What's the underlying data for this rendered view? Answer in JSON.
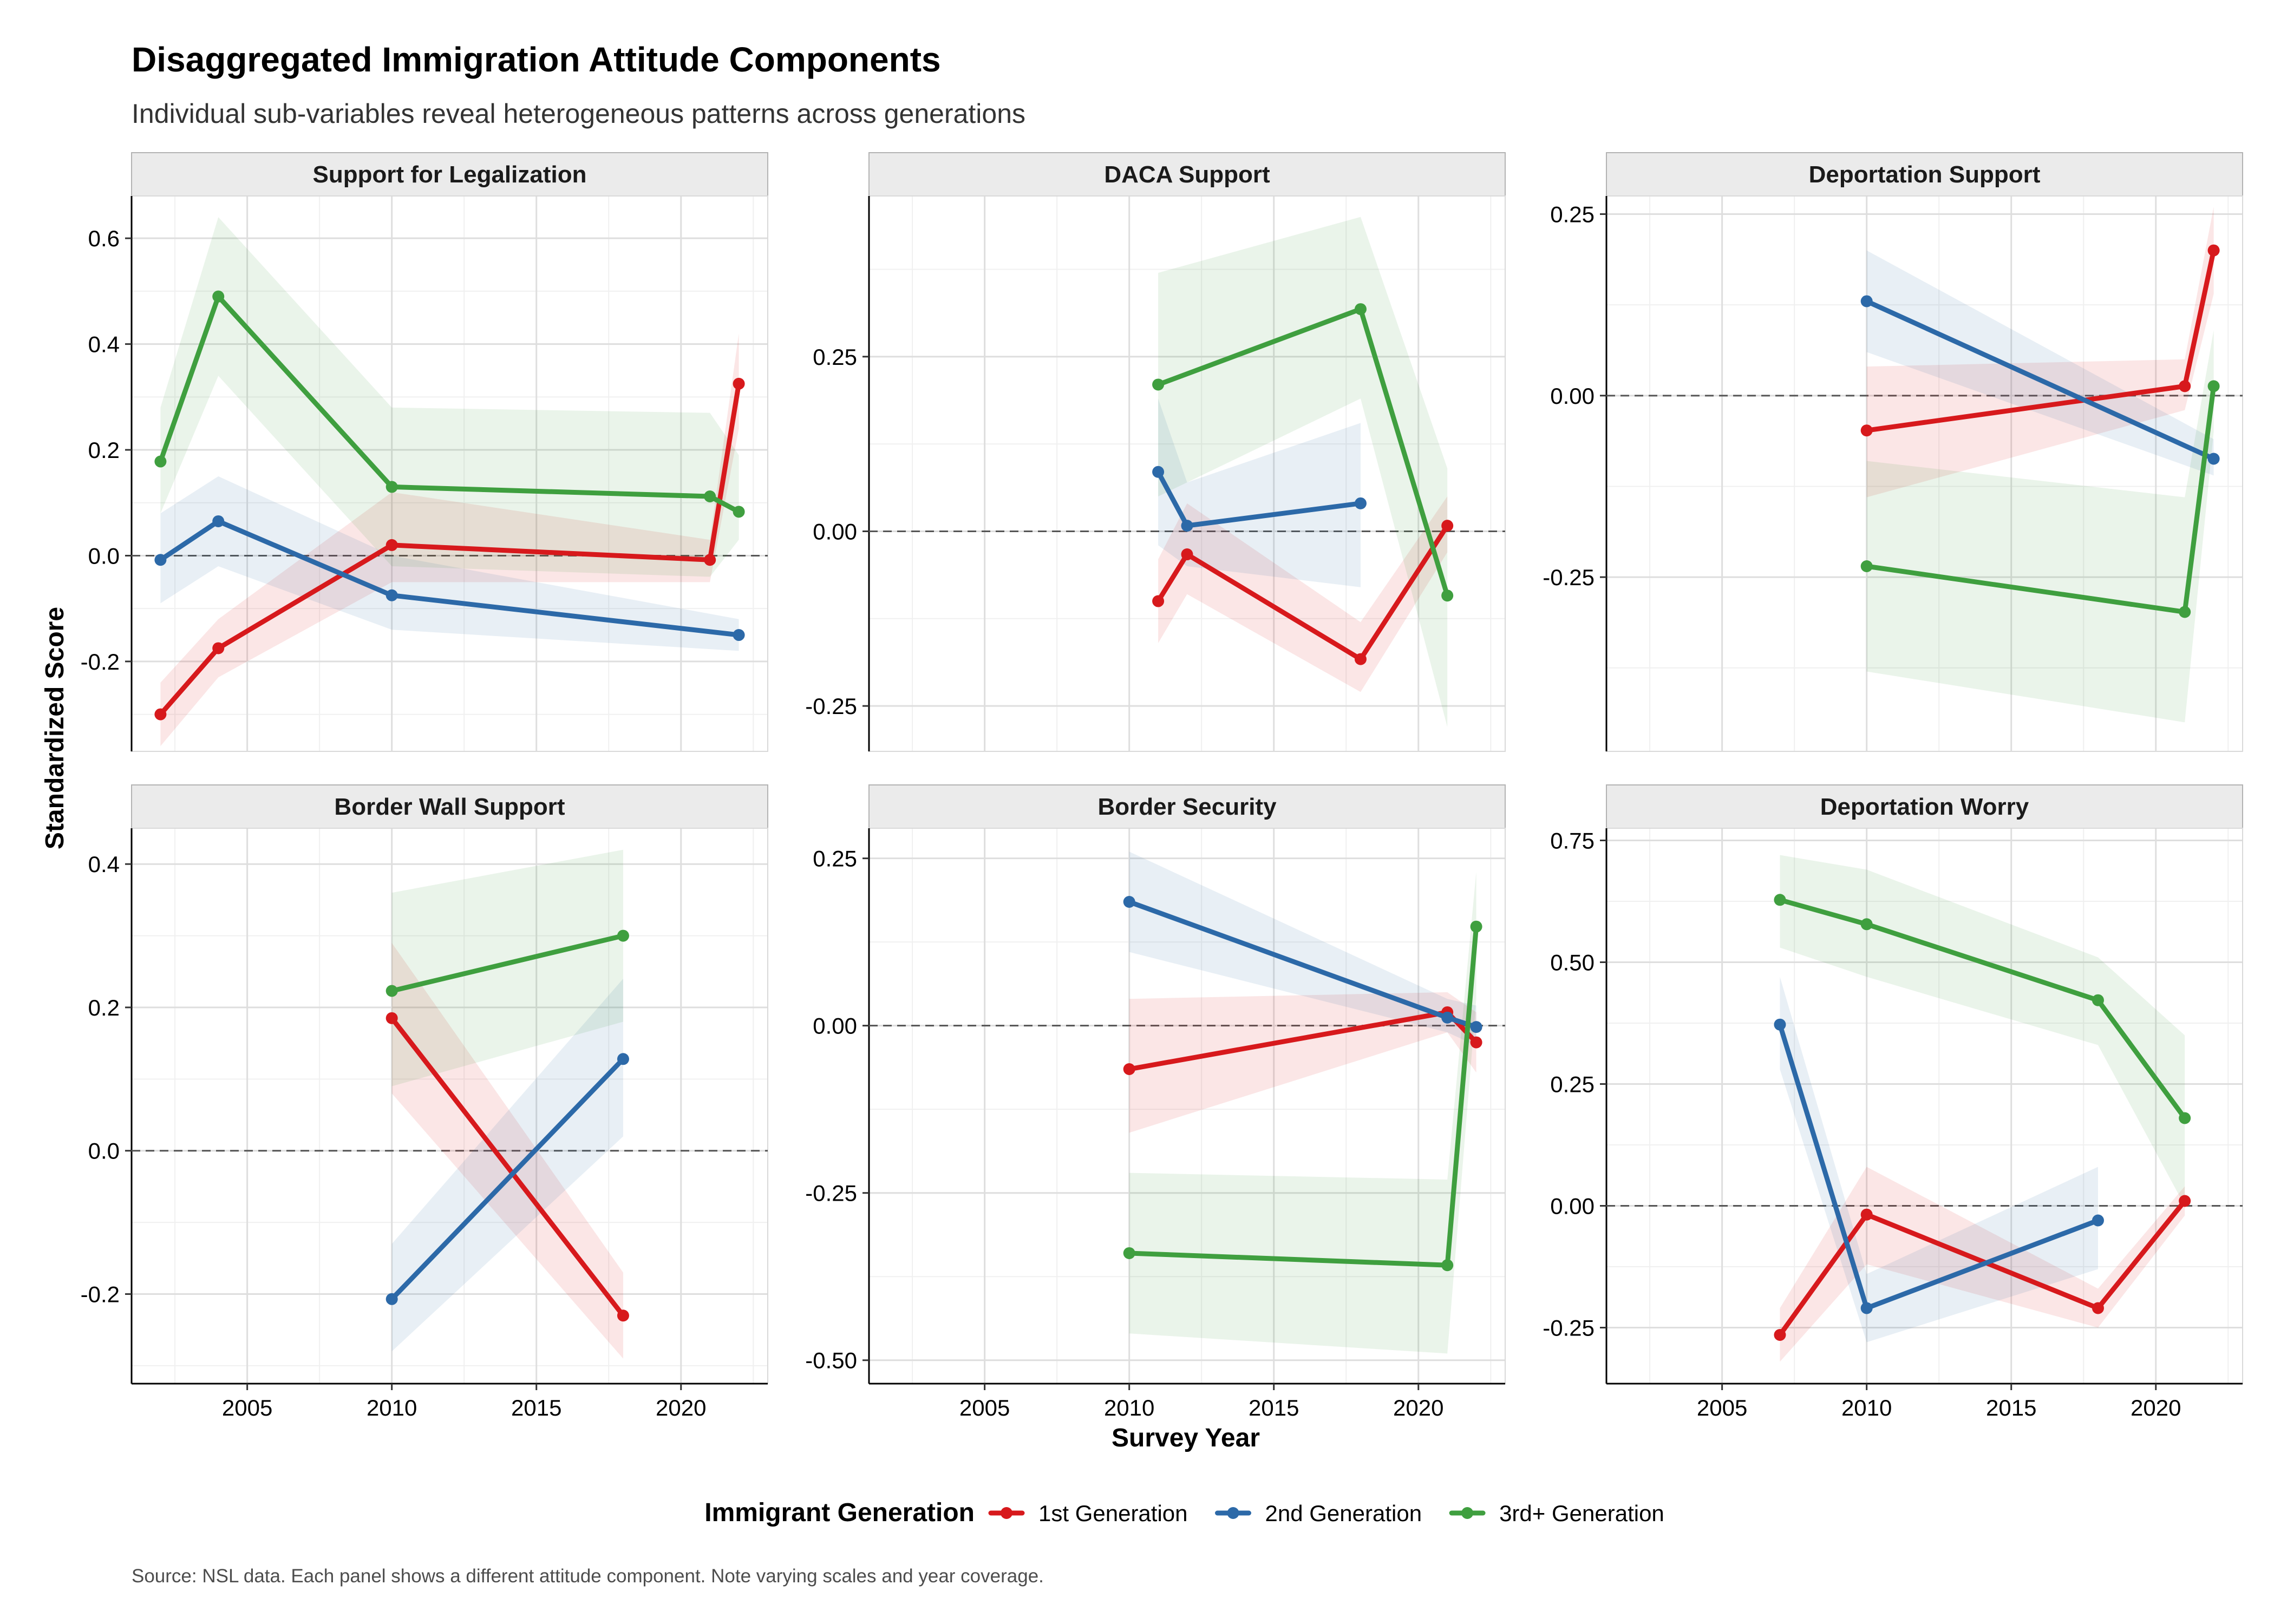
{
  "title": "Disaggregated Immigration Attitude Components",
  "subtitle": "Individual sub-variables reveal heterogeneous patterns across generations",
  "caption": "Source: NSL data. Each panel shows a different attitude component. Note varying scales and year coverage.",
  "chart_data": {
    "type": "line",
    "xlabel": "Survey Year",
    "ylabel": "Standardized Score",
    "xlim": [
      2001,
      2023
    ],
    "x_ticks": [
      2005,
      2010,
      2015,
      2020
    ],
    "grid": true,
    "reference_line": 0,
    "legend": {
      "title": "Immigrant Generation",
      "position": "bottom",
      "entries": [
        {
          "name": "1st Generation",
          "color": "#d7191c"
        },
        {
          "name": "2nd Generation",
          "color": "#2c69a8"
        },
        {
          "name": "3rd+ Generation",
          "color": "#3f9f3f"
        }
      ]
    },
    "panels": [
      {
        "title": "Support for Legalization",
        "ylim": [
          -0.37,
          0.68
        ],
        "y_ticks": [
          -0.2,
          0.0,
          0.2,
          0.4,
          0.6
        ],
        "y_tick_labels": [
          "-0.2",
          "0.0",
          "0.2",
          "0.4",
          "0.6"
        ],
        "series": [
          {
            "name": "1st Generation",
            "points": [
              {
                "x": 2002,
                "y": -0.3,
                "lo": -0.36,
                "hi": -0.24
              },
              {
                "x": 2004,
                "y": -0.175,
                "lo": -0.23,
                "hi": -0.12
              },
              {
                "x": 2010,
                "y": 0.02,
                "lo": -0.05,
                "hi": 0.12
              },
              {
                "x": 2021,
                "y": -0.008,
                "lo": -0.05,
                "hi": 0.03
              },
              {
                "x": 2022,
                "y": 0.325,
                "lo": 0.24,
                "hi": 0.42
              }
            ]
          },
          {
            "name": "2nd Generation",
            "points": [
              {
                "x": 2002,
                "y": -0.008,
                "lo": -0.09,
                "hi": 0.08
              },
              {
                "x": 2004,
                "y": 0.065,
                "lo": -0.02,
                "hi": 0.15
              },
              {
                "x": 2010,
                "y": -0.075,
                "lo": -0.14,
                "hi": 0.0
              },
              {
                "x": 2022,
                "y": -0.15,
                "lo": -0.18,
                "hi": -0.12
              }
            ]
          },
          {
            "name": "3rd+ Generation",
            "points": [
              {
                "x": 2002,
                "y": 0.178,
                "lo": 0.08,
                "hi": 0.28
              },
              {
                "x": 2004,
                "y": 0.49,
                "lo": 0.34,
                "hi": 0.64
              },
              {
                "x": 2010,
                "y": 0.13,
                "lo": -0.02,
                "hi": 0.28
              },
              {
                "x": 2021,
                "y": 0.112,
                "lo": -0.04,
                "hi": 0.27
              },
              {
                "x": 2022,
                "y": 0.083,
                "lo": 0.03,
                "hi": 0.19
              }
            ]
          }
        ]
      },
      {
        "title": "DACA Support",
        "ylim": [
          -0.315,
          0.48
        ],
        "y_ticks": [
          -0.25,
          0.0,
          0.25
        ],
        "y_tick_labels": [
          "-0.25",
          "0.00",
          "0.25"
        ],
        "series": [
          {
            "name": "1st Generation",
            "points": [
              {
                "x": 2011,
                "y": -0.1,
                "lo": -0.16,
                "hi": -0.04
              },
              {
                "x": 2012,
                "y": -0.033,
                "lo": -0.09,
                "hi": 0.04
              },
              {
                "x": 2018,
                "y": -0.183,
                "lo": -0.23,
                "hi": -0.13
              },
              {
                "x": 2021,
                "y": 0.008,
                "lo": -0.03,
                "hi": 0.05
              }
            ]
          },
          {
            "name": "2nd Generation",
            "points": [
              {
                "x": 2011,
                "y": 0.085,
                "lo": -0.02,
                "hi": 0.19
              },
              {
                "x": 2012,
                "y": 0.008,
                "lo": -0.05,
                "hi": 0.07
              },
              {
                "x": 2018,
                "y": 0.04,
                "lo": -0.08,
                "hi": 0.155
              }
            ]
          },
          {
            "name": "3rd+ Generation",
            "points": [
              {
                "x": 2011,
                "y": 0.21,
                "lo": 0.05,
                "hi": 0.37
              },
              {
                "x": 2018,
                "y": 0.318,
                "lo": 0.19,
                "hi": 0.45
              },
              {
                "x": 2021,
                "y": -0.092,
                "lo": -0.28,
                "hi": 0.09
              }
            ]
          }
        ]
      },
      {
        "title": "Deportation Support",
        "ylim": [
          -0.49,
          0.275
        ],
        "y_ticks": [
          -0.25,
          0.0,
          0.25
        ],
        "y_tick_labels": [
          "-0.25",
          "0.00",
          "0.25"
        ],
        "series": [
          {
            "name": "1st Generation",
            "points": [
              {
                "x": 2010,
                "y": -0.048,
                "lo": -0.14,
                "hi": 0.04
              },
              {
                "x": 2021,
                "y": 0.013,
                "lo": -0.02,
                "hi": 0.05
              },
              {
                "x": 2022,
                "y": 0.2,
                "lo": 0.14,
                "hi": 0.26
              }
            ]
          },
          {
            "name": "2nd Generation",
            "points": [
              {
                "x": 2010,
                "y": 0.13,
                "lo": 0.06,
                "hi": 0.2
              },
              {
                "x": 2022,
                "y": -0.087,
                "lo": -0.11,
                "hi": -0.06
              }
            ]
          },
          {
            "name": "3rd+ Generation",
            "points": [
              {
                "x": 2010,
                "y": -0.235,
                "lo": -0.38,
                "hi": -0.09
              },
              {
                "x": 2021,
                "y": -0.298,
                "lo": -0.45,
                "hi": -0.14
              },
              {
                "x": 2022,
                "y": 0.013,
                "lo": -0.05,
                "hi": 0.09
              }
            ]
          }
        ]
      },
      {
        "title": "Border Wall Support",
        "ylim": [
          -0.325,
          0.45
        ],
        "y_ticks": [
          -0.2,
          0.0,
          0.2,
          0.4
        ],
        "y_tick_labels": [
          "-0.2",
          "0.0",
          "0.2",
          "0.4"
        ],
        "series": [
          {
            "name": "1st Generation",
            "points": [
              {
                "x": 2010,
                "y": 0.185,
                "lo": 0.08,
                "hi": 0.29
              },
              {
                "x": 2018,
                "y": -0.23,
                "lo": -0.29,
                "hi": -0.17
              }
            ]
          },
          {
            "name": "2nd Generation",
            "points": [
              {
                "x": 2010,
                "y": -0.207,
                "lo": -0.28,
                "hi": -0.13
              },
              {
                "x": 2018,
                "y": 0.128,
                "lo": 0.02,
                "hi": 0.24
              }
            ]
          },
          {
            "name": "3rd+ Generation",
            "points": [
              {
                "x": 2010,
                "y": 0.223,
                "lo": 0.09,
                "hi": 0.36
              },
              {
                "x": 2018,
                "y": 0.3,
                "lo": 0.18,
                "hi": 0.42
              }
            ]
          }
        ]
      },
      {
        "title": "Border Security",
        "ylim": [
          -0.535,
          0.295
        ],
        "y_ticks": [
          -0.5,
          -0.25,
          0.0,
          0.25
        ],
        "y_tick_labels": [
          "-0.50",
          "-0.25",
          "0.00",
          "0.25"
        ],
        "series": [
          {
            "name": "1st Generation",
            "points": [
              {
                "x": 2010,
                "y": -0.065,
                "lo": -0.16,
                "hi": 0.04
              },
              {
                "x": 2021,
                "y": 0.02,
                "lo": -0.01,
                "hi": 0.05
              },
              {
                "x": 2022,
                "y": -0.025,
                "lo": -0.07,
                "hi": 0.02
              }
            ]
          },
          {
            "name": "2nd Generation",
            "points": [
              {
                "x": 2010,
                "y": 0.185,
                "lo": 0.11,
                "hi": 0.26
              },
              {
                "x": 2021,
                "y": 0.012,
                "lo": -0.01,
                "hi": 0.04
              },
              {
                "x": 2022,
                "y": -0.002,
                "lo": -0.03,
                "hi": 0.03
              }
            ]
          },
          {
            "name": "3rd+ Generation",
            "points": [
              {
                "x": 2010,
                "y": -0.34,
                "lo": -0.46,
                "hi": -0.22
              },
              {
                "x": 2021,
                "y": -0.358,
                "lo": -0.49,
                "hi": -0.23
              },
              {
                "x": 2022,
                "y": 0.148,
                "lo": 0.04,
                "hi": 0.23
              }
            ]
          }
        ]
      },
      {
        "title": "Deportation Worry",
        "ylim": [
          -0.365,
          0.775
        ],
        "y_ticks": [
          -0.25,
          0.0,
          0.25,
          0.5,
          0.75
        ],
        "y_tick_labels": [
          "-0.25",
          "0.00",
          "0.25",
          "0.50",
          "0.75"
        ],
        "series": [
          {
            "name": "1st Generation",
            "points": [
              {
                "x": 2007,
                "y": -0.265,
                "lo": -0.32,
                "hi": -0.21
              },
              {
                "x": 2010,
                "y": -0.018,
                "lo": -0.12,
                "hi": 0.08
              },
              {
                "x": 2018,
                "y": -0.21,
                "lo": -0.25,
                "hi": -0.17
              },
              {
                "x": 2021,
                "y": 0.01,
                "lo": -0.02,
                "hi": 0.04
              }
            ]
          },
          {
            "name": "2nd Generation",
            "points": [
              {
                "x": 2007,
                "y": 0.372,
                "lo": 0.28,
                "hi": 0.47
              },
              {
                "x": 2010,
                "y": -0.21,
                "lo": -0.28,
                "hi": -0.14
              },
              {
                "x": 2018,
                "y": -0.03,
                "lo": -0.13,
                "hi": 0.08
              }
            ]
          },
          {
            "name": "3rd+ Generation",
            "points": [
              {
                "x": 2007,
                "y": 0.628,
                "lo": 0.53,
                "hi": 0.72
              },
              {
                "x": 2010,
                "y": 0.578,
                "lo": 0.47,
                "hi": 0.69
              },
              {
                "x": 2018,
                "y": 0.422,
                "lo": 0.33,
                "hi": 0.51
              },
              {
                "x": 2021,
                "y": 0.18,
                "lo": 0.0,
                "hi": 0.35
              }
            ]
          }
        ]
      }
    ]
  }
}
